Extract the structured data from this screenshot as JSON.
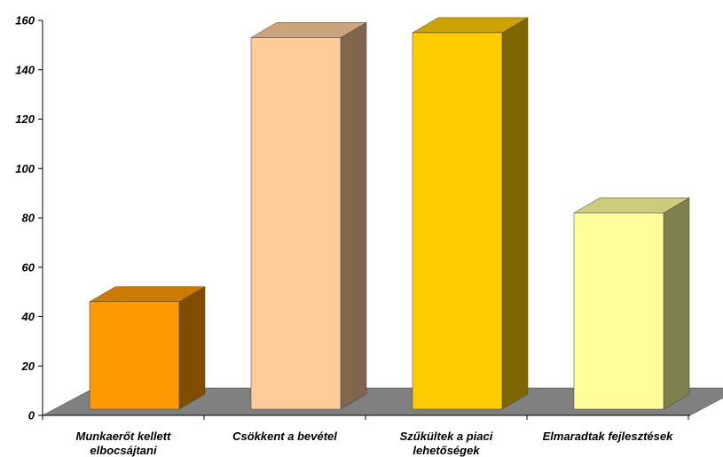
{
  "chart_data": {
    "type": "bar",
    "categories": [
      [
        "Munkaerőt kellett",
        "elbocsájtani"
      ],
      [
        "Csökkent a bevétel"
      ],
      [
        "Szűkültek a piaci",
        "lehetőségek"
      ],
      [
        "Elmaradtak fejlesztések"
      ]
    ],
    "values": [
      46,
      153,
      155,
      82
    ],
    "ylim": [
      0,
      160
    ],
    "yticks": [
      0,
      20,
      40,
      60,
      80,
      100,
      120,
      140,
      160
    ],
    "grid": false,
    "legend": "none",
    "style": "3d-columns",
    "colors": {
      "front": [
        "#FF9900",
        "#FFCC99",
        "#FFCC00",
        "#FFFF99"
      ],
      "top": [
        "#CC7A00",
        "#CCA37A",
        "#CCA300",
        "#CCCC7A"
      ],
      "side": [
        "#804C00",
        "#80664C",
        "#806600",
        "#80804C"
      ],
      "floor": "#808080",
      "axis": "#000000"
    }
  }
}
